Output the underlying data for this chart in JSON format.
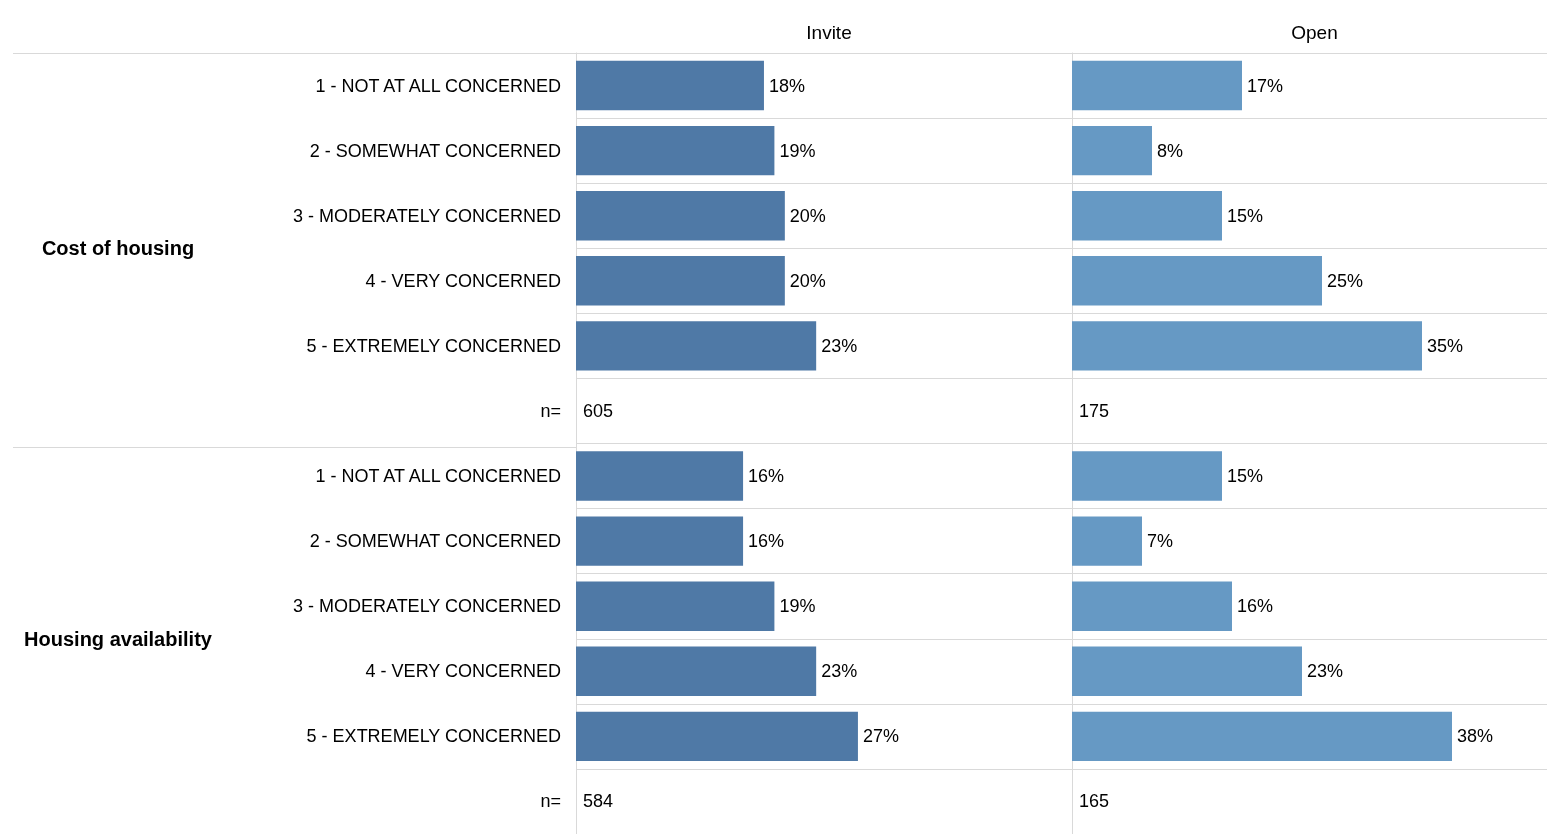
{
  "chart_data": [
    {
      "type": "bar",
      "orientation": "horizontal",
      "title": "Invite",
      "categories": [
        "1 - NOT AT ALL CONCERNED",
        "2 - SOMEWHAT CONCERNED",
        "3 - MODERATELY CONCERNED",
        "4 - VERY CONCERNED",
        "5 - EXTREMELY CONCERNED",
        "n=",
        "1 - NOT AT ALL CONCERNED",
        "2 - SOMEWHAT CONCERNED",
        "3 - MODERATELY CONCERNED",
        "4 - VERY CONCERNED",
        "5 - EXTREMELY CONCERNED",
        "n="
      ],
      "values": [
        18,
        19,
        20,
        20,
        23,
        null,
        16,
        16,
        19,
        23,
        27,
        null
      ],
      "value_labels": [
        "18%",
        "19%",
        "20%",
        "20%",
        "23%",
        "605",
        "16%",
        "16%",
        "19%",
        "23%",
        "27%",
        "584"
      ],
      "color": "#4f79a6",
      "grid": "y",
      "tick_labels": "y",
      "annotations": [
        "Cost of housing",
        "Housing availability"
      ]
    },
    {
      "type": "bar",
      "orientation": "horizontal",
      "title": "Open",
      "categories": [
        "1 - NOT AT ALL CONCERNED",
        "2 - SOMEWHAT CONCERNED",
        "3 - MODERATELY CONCERNED",
        "4 - VERY CONCERNED",
        "5 - EXTREMELY CONCERNED",
        "n=",
        "1 - NOT AT ALL CONCERNED",
        "2 - SOMEWHAT CONCERNED",
        "3 - MODERATELY CONCERNED",
        "4 - VERY CONCERNED",
        "5 - EXTREMELY CONCERNED",
        "n="
      ],
      "values": [
        17,
        8,
        15,
        25,
        35,
        null,
        15,
        7,
        16,
        23,
        38,
        null
      ],
      "value_labels": [
        "17%",
        "8%",
        "15%",
        "25%",
        "35%",
        "175",
        "15%",
        "7%",
        "16%",
        "23%",
        "38%",
        "165"
      ],
      "color": "#6699c4",
      "grid": "y",
      "tick_labels": false
    }
  ]
}
